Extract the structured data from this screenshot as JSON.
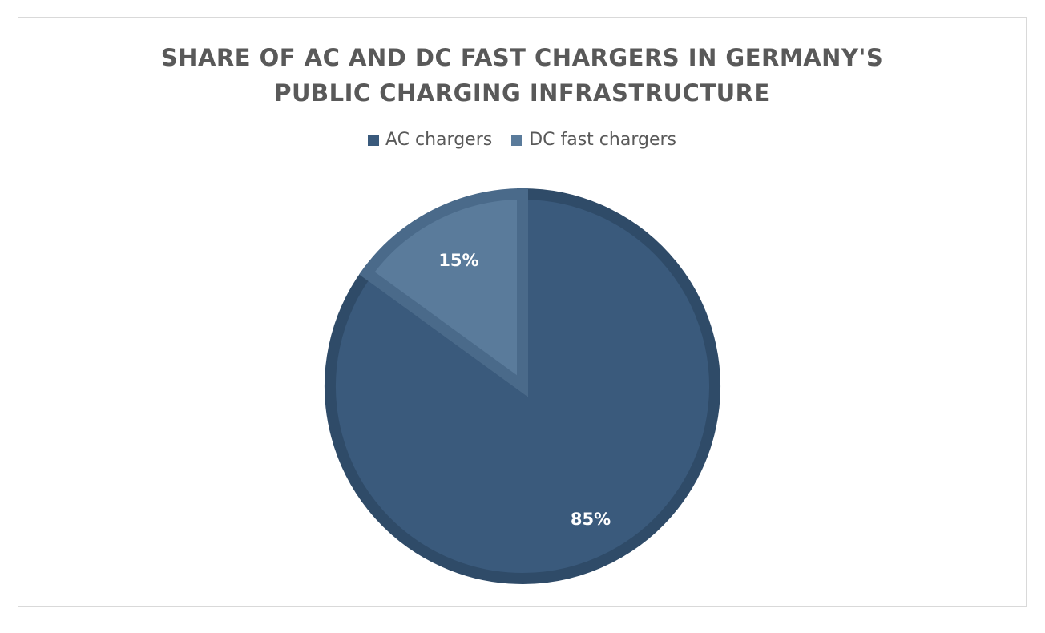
{
  "chart_data": {
    "type": "pie",
    "title_lines": [
      "SHARE OF AC AND DC FAST CHARGERS IN GERMANY'S",
      "PUBLIC CHARGING INFRASTRUCTURE"
    ],
    "categories": [
      "AC chargers",
      "DC fast chargers"
    ],
    "values": [
      85,
      15
    ],
    "data_labels": [
      "85%",
      "15%"
    ],
    "colors": [
      "#3a5a7c",
      "#5a7b9b"
    ],
    "edge_colors": [
      "#2f4b68",
      "#4a6a8a"
    ],
    "legend_position": "top",
    "start_angle_deg": 0,
    "direction": "clockwise"
  }
}
